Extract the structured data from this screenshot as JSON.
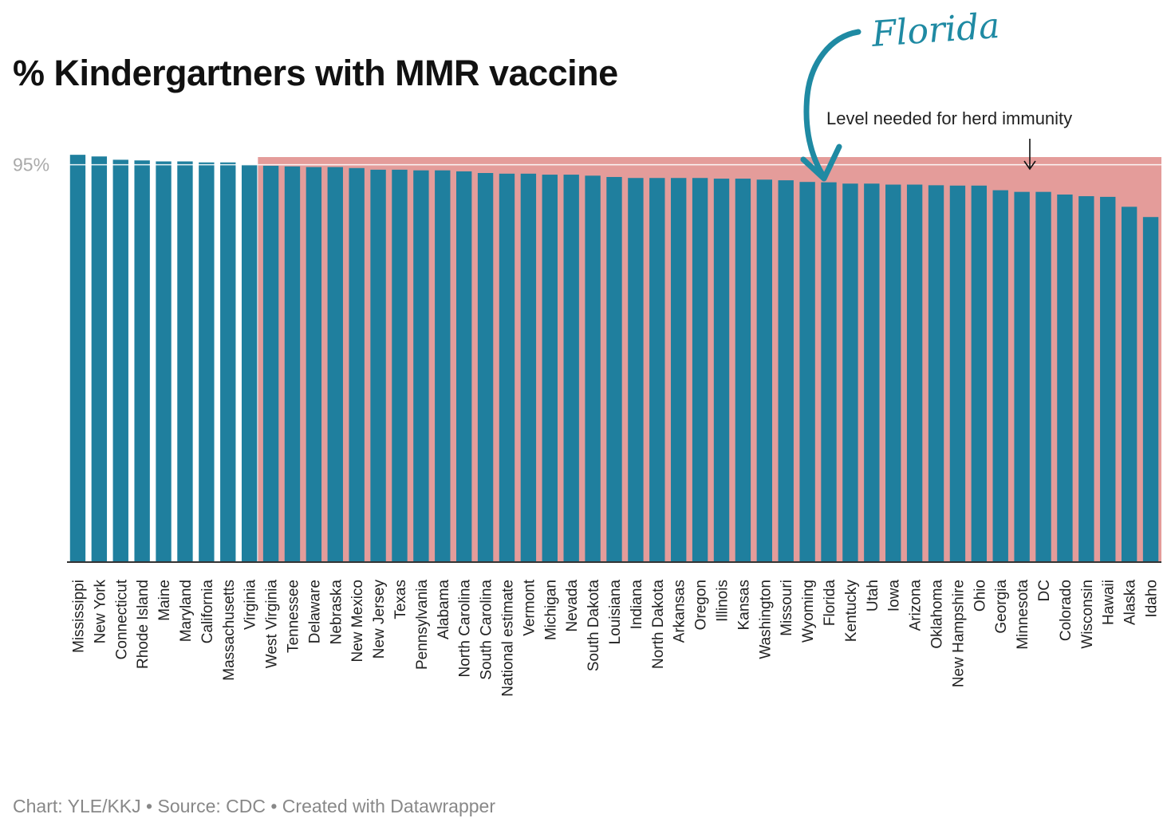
{
  "title": "% Kindergartners with MMR vaccine",
  "footer": "Chart: YLE/KKJ • Source: CDC • Created with Datawrapper",
  "annotations": {
    "herd": "Level needed for herd immunity",
    "florida": "Florida"
  },
  "colors": {
    "bar": "#1f7f9e",
    "band": "#e49c9a",
    "arrow": "#1f8aa3",
    "axis": "#333333",
    "tick_label": "#aaaaaa",
    "text": "#222222",
    "footer": "#888888"
  },
  "chart_data": {
    "type": "bar",
    "categories": [
      "Mississippi",
      "New York",
      "Connecticut",
      "Rhode Island",
      "Maine",
      "Maryland",
      "California",
      "Massachusetts",
      "Virginia",
      "West Virginia",
      "Tennessee",
      "Delaware",
      "Nebraska",
      "New Mexico",
      "New Jersey",
      "Texas",
      "Pennsylvania",
      "Alabama",
      "North Carolina",
      "South Carolina",
      "National estimate",
      "Vermont",
      "Michigan",
      "Nevada",
      "South Dakota",
      "Louisiana",
      "Indiana",
      "North Dakota",
      "Arkansas",
      "Oregon",
      "Illinois",
      "Kansas",
      "Washington",
      "Missouri",
      "Wyoming",
      "Florida",
      "Kentucky",
      "Utah",
      "Iowa",
      "Arizona",
      "Oklahoma",
      "New Hampshire",
      "Ohio",
      "Georgia",
      "Minnesota",
      "DC",
      "Colorado",
      "Wisconsin",
      "Hawaii",
      "Alaska",
      "Idaho"
    ],
    "values": [
      95.3,
      95.25,
      95.15,
      95.13,
      95.1,
      95.1,
      95.07,
      95.07,
      95.0,
      94.97,
      94.95,
      94.93,
      94.93,
      94.9,
      94.85,
      94.85,
      94.83,
      94.83,
      94.8,
      94.75,
      94.73,
      94.73,
      94.7,
      94.7,
      94.67,
      94.63,
      94.6,
      94.6,
      94.6,
      94.6,
      94.58,
      94.58,
      94.55,
      94.53,
      94.48,
      94.47,
      94.43,
      94.43,
      94.4,
      94.4,
      94.38,
      94.37,
      94.37,
      94.23,
      94.18,
      94.18,
      94.1,
      94.05,
      94.03,
      93.73,
      93.42
    ],
    "y_ticks": [
      {
        "value": 95,
        "label": "95%"
      }
    ],
    "ylim": [
      83.0,
      95.4
    ],
    "herd_threshold": 95,
    "highlight": "Florida",
    "xlabel": "",
    "ylabel": "",
    "legend": "none",
    "grid": false
  }
}
